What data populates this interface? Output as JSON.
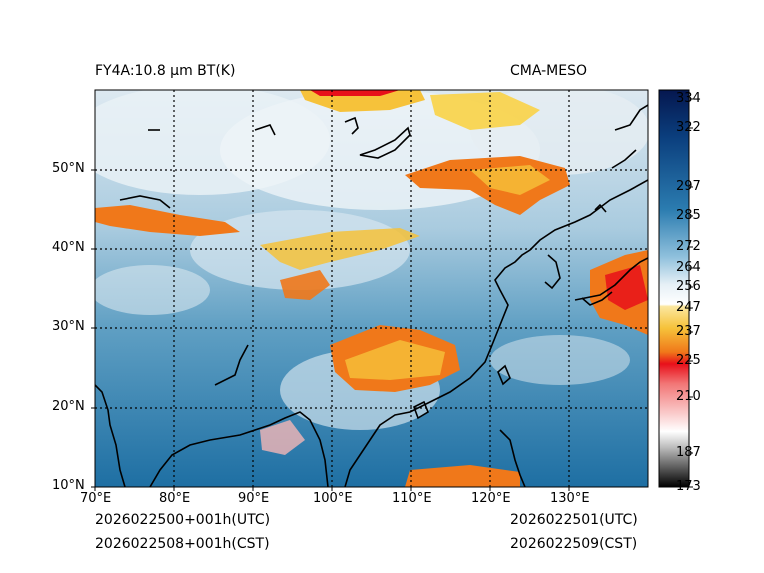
{
  "figure": {
    "title_left": "FY4A:10.8 µm BT(K)",
    "title_right": "CMA-MESO",
    "run_time_utc": "2026022500+001h(UTC)",
    "run_time_cst": "2026022508+001h(CST)",
    "valid_time_utc": "2026022501(UTC)",
    "valid_time_cst": "2026022509(CST)"
  },
  "map": {
    "lon_range": [
      70,
      140
    ],
    "lat_range": [
      10,
      60
    ],
    "lon_ticks": [
      "70°E",
      "80°E",
      "90°E",
      "100°E",
      "110°E",
      "120°E",
      "130°E"
    ],
    "lat_ticks": [
      "10°N",
      "20°N",
      "30°N",
      "40°N",
      "50°N"
    ],
    "gridlines": "dotted",
    "variable": "Brightness temperature (K)"
  },
  "colorbar": {
    "range": [
      173,
      340
    ],
    "tick_labels": [
      "334",
      "322",
      "297",
      "285",
      "272",
      "264",
      "256",
      "247",
      "237",
      "225",
      "210",
      "187",
      "173"
    ],
    "tick_values": [
      334,
      322,
      297,
      285,
      272,
      264,
      256,
      247,
      237,
      225,
      210,
      187,
      173
    ],
    "colors": {
      "cold_black": "#000000",
      "gray": "#9a9a9a",
      "pink": "#f7b6b6",
      "red": "#e8101a",
      "orange": "#f07a18",
      "yellow": "#f9d347",
      "white": "#ffffff",
      "light_blue": "#cfe3ef",
      "mid_blue": "#4d9cc2",
      "dark_blue": "#0b4f8a",
      "navy": "#05174f"
    }
  }
}
